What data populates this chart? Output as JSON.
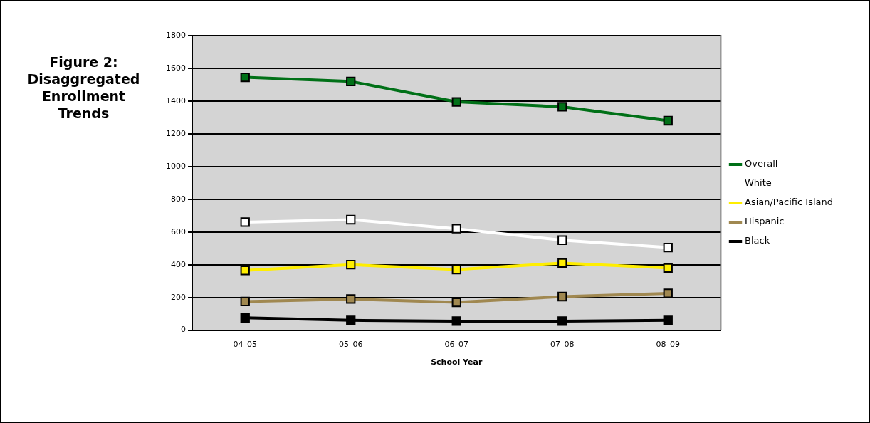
{
  "chart_data": {
    "type": "line",
    "title": "Figure 2: Disaggregated Enrollment Trends",
    "xlabel": "School Year",
    "categories": [
      "04–05",
      "05–06",
      "06–07",
      "07–08",
      "08–09"
    ],
    "series": [
      {
        "name": "Overall",
        "color": "#007017",
        "values": [
          1545,
          1520,
          1395,
          1365,
          1280
        ]
      },
      {
        "name": "White",
        "color": "#ffffff",
        "values": [
          660,
          675,
          620,
          550,
          505
        ]
      },
      {
        "name": "Asian/Pacific Island",
        "color": "#ffee00",
        "values": [
          365,
          400,
          370,
          410,
          380
        ]
      },
      {
        "name": "Hispanic",
        "color": "#a08850",
        "values": [
          175,
          190,
          170,
          205,
          225
        ]
      },
      {
        "name": "Black",
        "color": "#000000",
        "values": [
          75,
          60,
          55,
          55,
          60
        ]
      }
    ],
    "ylim": [
      0,
      1800
    ],
    "yticks": [
      0,
      200,
      400,
      600,
      800,
      1000,
      1200,
      1400,
      1600,
      1800
    ],
    "grid": "y",
    "legend": "right",
    "marker": "square",
    "line_style": "solid"
  }
}
